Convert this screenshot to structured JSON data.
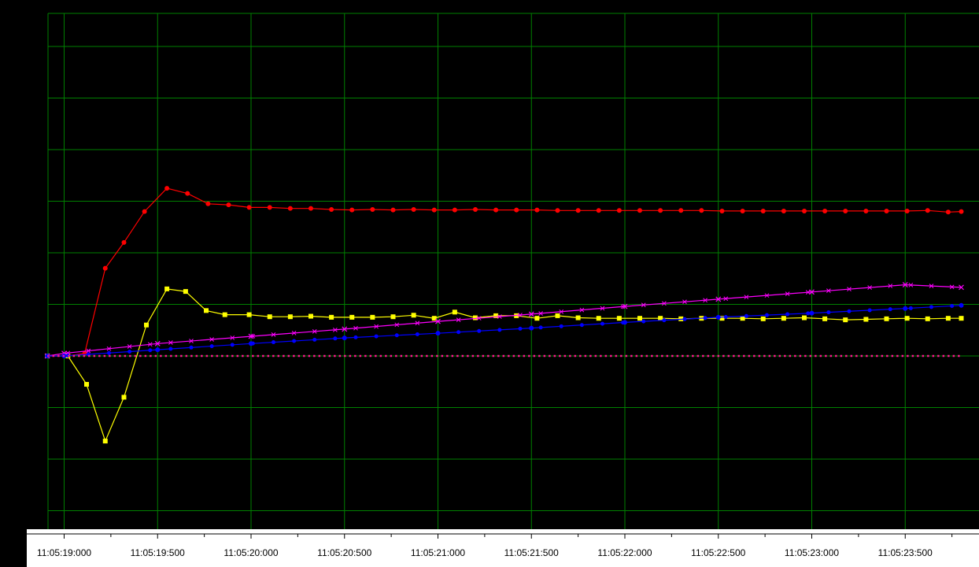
{
  "chart_data": {
    "type": "line",
    "x_format": "HH:MM:SS:mmm",
    "x_start": "11:05:19:000",
    "x_end": "11:05:23:800",
    "x_tick_labels": [
      "11:05:19:000",
      "11:05:19:500",
      "11:05:20:000",
      "11:05:20:500",
      "11:05:21:000",
      "11:05:21:500",
      "11:05:22:000",
      "11:05:22:500",
      "11:05:23:000",
      "11:05:23:500"
    ],
    "ylim": [
      -3.5,
      6.75
    ],
    "grid": true,
    "legend": "none",
    "colors": {
      "background": "#000000",
      "grid": "#008000",
      "red": "#ff0000",
      "yellow": "#ffff00",
      "magenta": "#ff00ff",
      "blue": "#0000ff",
      "pink_dotted": "#ff1493",
      "axis_text": "#000000"
    },
    "series": [
      {
        "color": "#ff0000",
        "marker": "circle",
        "style": "solid",
        "x": [
          "11:05:18:910",
          "11:05:19:020",
          "11:05:19:110",
          "11:05:19:220",
          "11:05:19:320",
          "11:05:19:430",
          "11:05:19:550",
          "11:05:19:660",
          "11:05:19:770",
          "11:05:19:880",
          "11:05:19:990",
          "11:05:20:100",
          "11:05:20:210",
          "11:05:20:320",
          "11:05:20:430",
          "11:05:20:540",
          "11:05:20:650",
          "11:05:20:760",
          "11:05:20:870",
          "11:05:20:980",
          "11:05:21:090",
          "11:05:21:200",
          "11:05:21:310",
          "11:05:21:420",
          "11:05:21:530",
          "11:05:21:640",
          "11:05:21:750",
          "11:05:21:860",
          "11:05:21:970",
          "11:05:22:080",
          "11:05:22:190",
          "11:05:22:300",
          "11:05:22:410",
          "11:05:22:520",
          "11:05:22:630",
          "11:05:22:740",
          "11:05:22:850",
          "11:05:22:960",
          "11:05:23:070",
          "11:05:23:180",
          "11:05:23:290",
          "11:05:23:400",
          "11:05:23:510",
          "11:05:23:620",
          "11:05:23:730",
          "11:05:23:800"
        ],
        "values": [
          0.0,
          0.0,
          0.05,
          1.7,
          2.2,
          2.8,
          3.25,
          3.15,
          2.95,
          2.93,
          2.88,
          2.88,
          2.86,
          2.86,
          2.84,
          2.83,
          2.84,
          2.83,
          2.84,
          2.83,
          2.83,
          2.84,
          2.83,
          2.83,
          2.83,
          2.82,
          2.82,
          2.82,
          2.82,
          2.82,
          2.82,
          2.82,
          2.82,
          2.81,
          2.81,
          2.81,
          2.81,
          2.81,
          2.81,
          2.81,
          2.81,
          2.81,
          2.81,
          2.82,
          2.79,
          2.8
        ]
      },
      {
        "color": "#ffff00",
        "marker": "square",
        "style": "solid",
        "x": [
          "11:05:18:910",
          "11:05:19:020",
          "11:05:19:120",
          "11:05:19:220",
          "11:05:19:320",
          "11:05:19:440",
          "11:05:19:550",
          "11:05:19:650",
          "11:05:19:760",
          "11:05:19:860",
          "11:05:19:990",
          "11:05:20:100",
          "11:05:20:210",
          "11:05:20:320",
          "11:05:20:430",
          "11:05:20:540",
          "11:05:20:650",
          "11:05:20:760",
          "11:05:20:870",
          "11:05:20:980",
          "11:05:21:090",
          "11:05:21:200",
          "11:05:21:310",
          "11:05:21:420",
          "11:05:21:530",
          "11:05:21:640",
          "11:05:21:750",
          "11:05:21:860",
          "11:05:21:970",
          "11:05:22:080",
          "11:05:22:190",
          "11:05:22:300",
          "11:05:22:410",
          "11:05:22:520",
          "11:05:22:630",
          "11:05:22:740",
          "11:05:22:850",
          "11:05:22:960",
          "11:05:23:070",
          "11:05:23:180",
          "11:05:23:290",
          "11:05:23:400",
          "11:05:23:510",
          "11:05:23:620",
          "11:05:23:730",
          "11:05:23:800"
        ],
        "values": [
          0.0,
          0.0,
          -0.55,
          -1.65,
          -0.8,
          0.6,
          1.3,
          1.25,
          0.88,
          0.8,
          0.8,
          0.76,
          0.76,
          0.77,
          0.75,
          0.75,
          0.75,
          0.76,
          0.79,
          0.73,
          0.85,
          0.74,
          0.78,
          0.78,
          0.73,
          0.78,
          0.74,
          0.73,
          0.73,
          0.73,
          0.73,
          0.72,
          0.73,
          0.73,
          0.73,
          0.72,
          0.73,
          0.74,
          0.72,
          0.7,
          0.71,
          0.72,
          0.73,
          0.72,
          0.73,
          0.73
        ]
      },
      {
        "color": "#ff00ff",
        "marker": "x",
        "style": "solid",
        "x": [
          "11:05:18:910",
          "11:05:19:000",
          "11:05:19:500",
          "11:05:20:000",
          "11:05:20:500",
          "11:05:21:000",
          "11:05:21:500",
          "11:05:22:000",
          "11:05:22:500",
          "11:05:23:000",
          "11:05:23:500",
          "11:05:23:800"
        ],
        "values": [
          0.0,
          0.05,
          0.24,
          0.38,
          0.52,
          0.67,
          0.81,
          0.96,
          1.1,
          1.24,
          1.38,
          1.33
        ]
      },
      {
        "color": "#0000ff",
        "marker": "circle",
        "style": "solid",
        "x": [
          "11:05:18:910",
          "11:05:19:000",
          "11:05:19:500",
          "11:05:20:000",
          "11:05:20:500",
          "11:05:21:000",
          "11:05:21:500",
          "11:05:22:000",
          "11:05:22:500",
          "11:05:23:000",
          "11:05:23:500",
          "11:05:23:800"
        ],
        "values": [
          0.0,
          0.0,
          0.12,
          0.24,
          0.35,
          0.44,
          0.54,
          0.65,
          0.75,
          0.83,
          0.92,
          0.98
        ]
      },
      {
        "color": "#ff1493",
        "marker": "none",
        "style": "dotted",
        "x": [
          "11:05:18:910",
          "11:05:23:800"
        ],
        "values": [
          0.0,
          0.0
        ]
      }
    ]
  }
}
